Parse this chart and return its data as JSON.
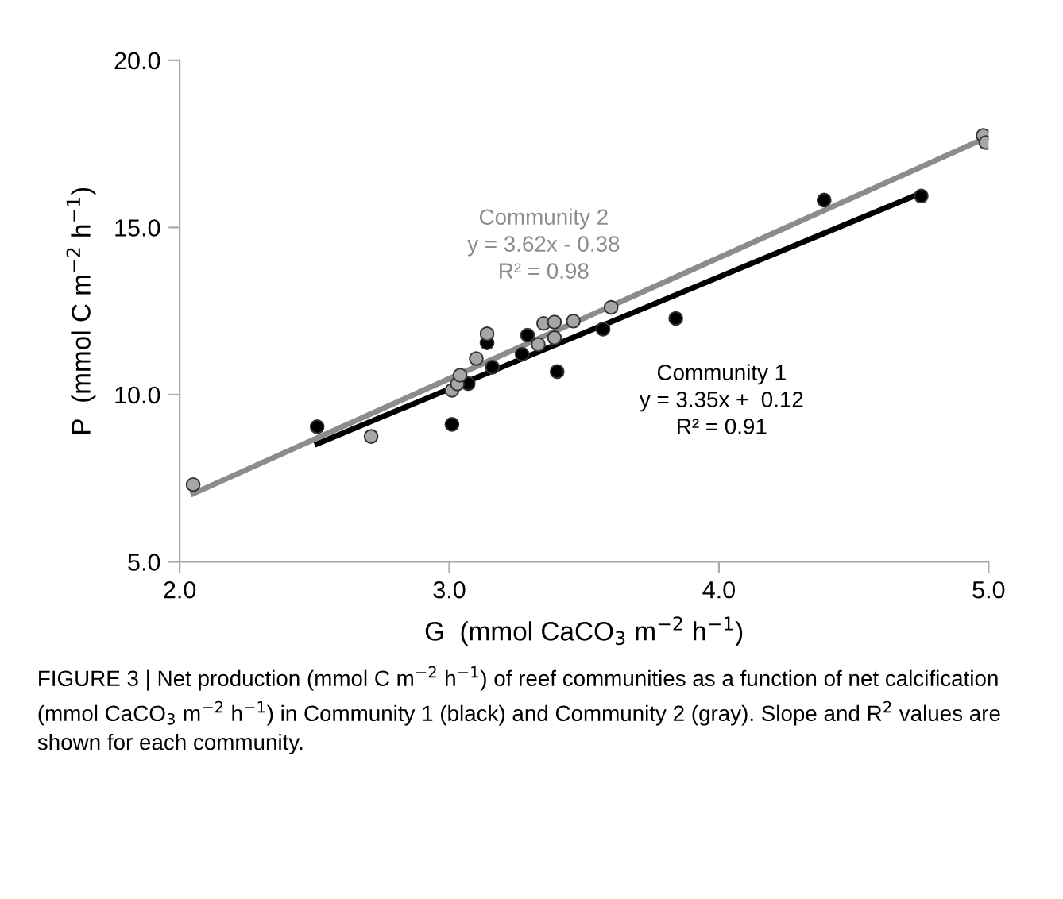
{
  "chart_data": {
    "type": "scatter",
    "xlabel": "G  (mmol CaCO$_{3}$ m$^{−2}$ h$^{−1}$)",
    "ylabel": "P  (mmol C m$^{−2}$ h$^{−1}$)",
    "xlim": [
      2.0,
      5.0
    ],
    "xticks": [
      {
        "value": 2,
        "label": "2.0"
      },
      {
        "value": 3,
        "label": "3.0"
      },
      {
        "value": 4,
        "label": "4.0"
      },
      {
        "value": 5,
        "label": "5.0"
      }
    ],
    "ylim": [
      5.0,
      20.0
    ],
    "yticks": [
      {
        "value": 5,
        "label": "5.0"
      },
      {
        "value": 10,
        "label": "10.0"
      },
      {
        "value": 15,
        "label": "15.0"
      },
      {
        "value": 20,
        "label": "20.0"
      }
    ],
    "grid": false,
    "legend": false,
    "series": [
      {
        "color": "#000000",
        "marker": "circle",
        "x": [
          2.51,
          3.01,
          3.07,
          3.14,
          3.16,
          3.27,
          3.29,
          3.4,
          3.57,
          3.84,
          4.39,
          4.75
        ],
        "values": [
          9.04,
          9.11,
          10.33,
          11.55,
          10.82,
          11.21,
          11.78,
          10.69,
          11.96,
          12.28,
          15.82,
          15.94
        ]
      },
      {
        "color": "#a6a6a6",
        "marker": "circle",
        "x": [
          2.05,
          2.71,
          3.01,
          3.03,
          3.04,
          3.1,
          3.14,
          3.33,
          3.35,
          3.39,
          3.39,
          3.46,
          3.6,
          4.98,
          4.99
        ],
        "values": [
          7.31,
          8.75,
          10.13,
          10.32,
          10.58,
          11.08,
          11.82,
          11.5,
          12.13,
          12.17,
          11.7,
          12.2,
          12.61,
          17.75,
          17.54
        ]
      },
      {
        "type": "line",
        "marker": "none",
        "color": "#000000",
        "x": [
          2.51,
          4.75
        ],
        "values": [
          8.53,
          16.03
        ]
      },
      {
        "type": "line",
        "marker": "none",
        "color": "#8c8c8c",
        "x": [
          2.05,
          4.99
        ],
        "values": [
          7.04,
          17.68
        ]
      }
    ],
    "annotations": [
      "Community 1\ny = 3.35x +  0.12\nR² = 0.91",
      "Community 2\ny = 3.62x - 0.38\nR² = 0.98",
      "FIGURE 3 | Net production (mmol C m$^{−2}$ h$^{−1}$) of reef communities as a function of net calcification (mmol CaCO$_{3}$ m$^{−2}$ h$^{−1}$) in Community 1 (black) and Community 2 (gray). Slope and R$^{2}$ values are shown for each community."
    ]
  }
}
